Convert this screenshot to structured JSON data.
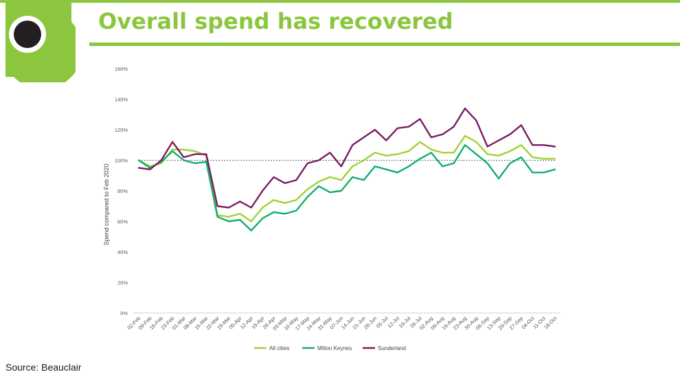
{
  "slide": {
    "title": "Overall spend has recovered",
    "source": "Source: Beauclair"
  },
  "colors": {
    "accent": "#8cc63f",
    "logo_dot": "#231f20"
  },
  "chart_data": {
    "type": "line",
    "ylabel": "Spend compared to Feb 2020",
    "xlabel": "",
    "ylim": [
      0,
      160
    ],
    "yticks": [
      "0%",
      "20%",
      "40%",
      "60%",
      "80%",
      "100%",
      "120%",
      "140%",
      "160%"
    ],
    "reference_line": 100,
    "legend_position": "bottom",
    "categories": [
      "02-Feb",
      "09-Feb",
      "16-Feb",
      "23-Feb",
      "01-Mar",
      "08-Mar",
      "15-Mar",
      "22-Mar",
      "29-Mar",
      "05-Apr",
      "12-Apr",
      "19-Apr",
      "26-Apr",
      "03-May",
      "10-May",
      "17-May",
      "24-May",
      "31-May",
      "07-Jun",
      "14-Jun",
      "21-Jun",
      "28-Jun",
      "05-Jul",
      "12-Jul",
      "19-Jul",
      "26-Jul",
      "02-Aug",
      "09-Aug",
      "16-Aug",
      "23-Aug",
      "30-Aug",
      "06-Sep",
      "13-Sep",
      "20-Sep",
      "27-Sep",
      "04-Oct",
      "11-Oct",
      "18-Oct"
    ],
    "series": [
      {
        "name": "All cities",
        "color": "#9fd232",
        "values": [
          100,
          96,
          98,
          107,
          107,
          106,
          103,
          64,
          63,
          65,
          60,
          69,
          74,
          72,
          74,
          81,
          86,
          89,
          87,
          96,
          100,
          105,
          103,
          104,
          106,
          112,
          107,
          105,
          105,
          116,
          112,
          104,
          103,
          106,
          110,
          102,
          101,
          101
        ]
      },
      {
        "name": "Milton Keynes",
        "color": "#10ae6a",
        "values": [
          100,
          95,
          99,
          106,
          100,
          98,
          99,
          63,
          60,
          61,
          54,
          62,
          66,
          65,
          67,
          76,
          83,
          79,
          80,
          89,
          87,
          96,
          94,
          92,
          96,
          101,
          105,
          96,
          98,
          110,
          104,
          98,
          88,
          98,
          102,
          92,
          92,
          94
        ]
      },
      {
        "name": "Sunderland",
        "color": "#7a1a64",
        "values": [
          95,
          94,
          100,
          112,
          102,
          104,
          104,
          70,
          69,
          73,
          69,
          80,
          89,
          85,
          87,
          98,
          100,
          105,
          96,
          110,
          115,
          120,
          113,
          121,
          122,
          127,
          115,
          117,
          122,
          134,
          126,
          109,
          113,
          117,
          123,
          110,
          110,
          109
        ]
      }
    ]
  }
}
